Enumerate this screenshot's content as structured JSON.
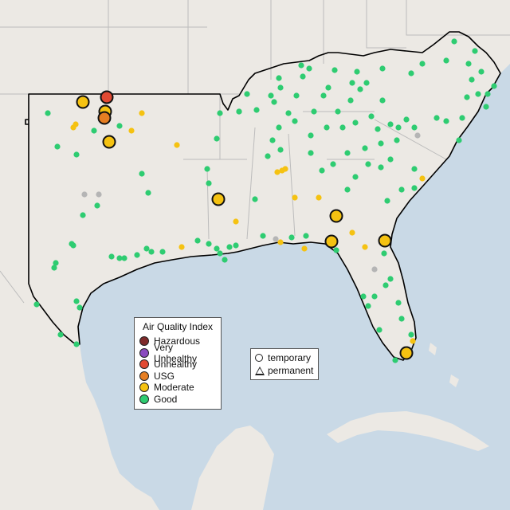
{
  "legend": {
    "title": "Air Quality Index",
    "categories": [
      {
        "label": "Hazardous",
        "color": "#7e2a2a"
      },
      {
        "label": "Very Unhealthy",
        "color": "#8a4bbf"
      },
      {
        "label": "Unhealthy",
        "color": "#e24a33"
      },
      {
        "label": "USG",
        "color": "#e67e22"
      },
      {
        "label": "Moderate",
        "color": "#f5c211"
      },
      {
        "label": "Good",
        "color": "#2ecc71"
      }
    ]
  },
  "site_types": {
    "temporary": "temporary",
    "permanent": "permanent"
  },
  "colors": {
    "water": "#c9d9e6",
    "land": "#ece9e4",
    "border": "#bcbcbc",
    "region_outline": "#000000",
    "no_data": "#b5b5b5"
  }
}
